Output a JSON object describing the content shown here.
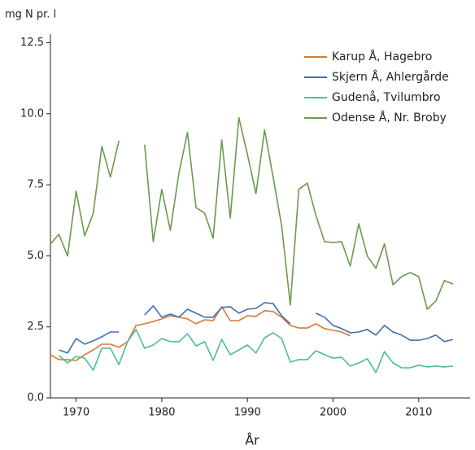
{
  "chart_data": {
    "type": "line",
    "ylabel": "mg N pr. l",
    "xlabel": "År",
    "x": [
      1967,
      1968,
      1969,
      1970,
      1971,
      1972,
      1973,
      1974,
      1975,
      1976,
      1977,
      1978,
      1979,
      1980,
      1981,
      1982,
      1983,
      1984,
      1985,
      1986,
      1987,
      1988,
      1989,
      1990,
      1991,
      1992,
      1993,
      1994,
      1995,
      1996,
      1997,
      1998,
      1999,
      2000,
      2001,
      2002,
      2003,
      2004,
      2005,
      2006,
      2007,
      2008,
      2009,
      2010,
      2011,
      2012,
      2013,
      2014
    ],
    "series": [
      {
        "name": "Karup Å, Hagebro",
        "color": "#e0782f",
        "values": [
          1.52,
          1.35,
          1.35,
          1.32,
          1.52,
          1.69,
          1.89,
          1.89,
          1.78,
          1.98,
          2.55,
          2.61,
          2.69,
          2.78,
          2.89,
          2.84,
          2.78,
          2.61,
          2.75,
          2.72,
          3.21,
          2.72,
          2.72,
          2.89,
          2.87,
          3.07,
          3.04,
          2.84,
          2.55,
          2.46,
          2.46,
          2.61,
          2.44,
          2.38,
          2.32,
          2.18,
          null,
          null,
          null,
          null,
          null,
          null,
          null,
          null,
          null,
          null,
          null,
          null
        ]
      },
      {
        "name": "Skjern Å, Ahlergårde",
        "color": "#3b6fb6",
        "values": [
          null,
          1.69,
          1.58,
          2.09,
          1.89,
          2.01,
          2.15,
          2.32,
          2.32,
          null,
          null,
          2.92,
          3.24,
          2.84,
          2.95,
          2.84,
          3.12,
          2.98,
          2.84,
          2.84,
          3.18,
          3.21,
          2.98,
          3.12,
          3.15,
          3.35,
          3.32,
          2.89,
          2.61,
          null,
          null,
          2.98,
          2.84,
          2.55,
          2.44,
          2.29,
          2.32,
          2.41,
          2.21,
          2.55,
          2.32,
          2.21,
          2.03,
          2.03,
          2.09,
          2.21,
          1.98,
          2.06
        ]
      },
      {
        "name": "Gudenå, Tvilumbro",
        "color": "#4cc08f",
        "values": [
          null,
          1.49,
          1.23,
          1.46,
          1.4,
          0.97,
          1.75,
          1.75,
          1.17,
          1.98,
          2.41,
          1.75,
          1.86,
          2.09,
          1.98,
          1.98,
          2.26,
          1.83,
          1.98,
          1.32,
          2.06,
          1.52,
          1.69,
          1.86,
          1.58,
          2.12,
          2.29,
          2.09,
          1.26,
          1.35,
          1.35,
          1.66,
          1.52,
          1.4,
          1.43,
          1.12,
          1.23,
          1.38,
          0.89,
          1.63,
          1.23,
          1.06,
          1.06,
          1.15,
          1.09,
          1.12,
          1.09,
          1.12
        ]
      },
      {
        "name": "Odense Å, Nr. Broby",
        "color": "#6a9a4f",
        "values": [
          5.42,
          5.76,
          4.99,
          7.28,
          5.7,
          6.5,
          8.85,
          7.77,
          9.05,
          null,
          null,
          8.91,
          5.5,
          7.34,
          5.9,
          7.91,
          9.34,
          6.7,
          6.5,
          5.62,
          9.08,
          6.33,
          9.86,
          8.57,
          7.19,
          9.43,
          7.77,
          6.05,
          3.27,
          7.34,
          7.56,
          6.42,
          5.5,
          5.47,
          5.5,
          4.64,
          6.13,
          4.99,
          4.56,
          5.42,
          3.98,
          4.27,
          4.41,
          4.27,
          3.12,
          3.41,
          4.13,
          4.01
        ]
      }
    ],
    "xlim": [
      1967,
      2016
    ],
    "xticks": [
      1970,
      1980,
      1990,
      2000,
      2010
    ],
    "ylim": [
      0,
      12.8
    ],
    "yticks": [
      {
        "value": 0,
        "label": "0.0"
      },
      2.5,
      {
        "value": 5,
        "label": "5.0"
      },
      7.5,
      {
        "value": 10,
        "label": "10.0"
      },
      12.5
    ],
    "legend": "upper right"
  }
}
